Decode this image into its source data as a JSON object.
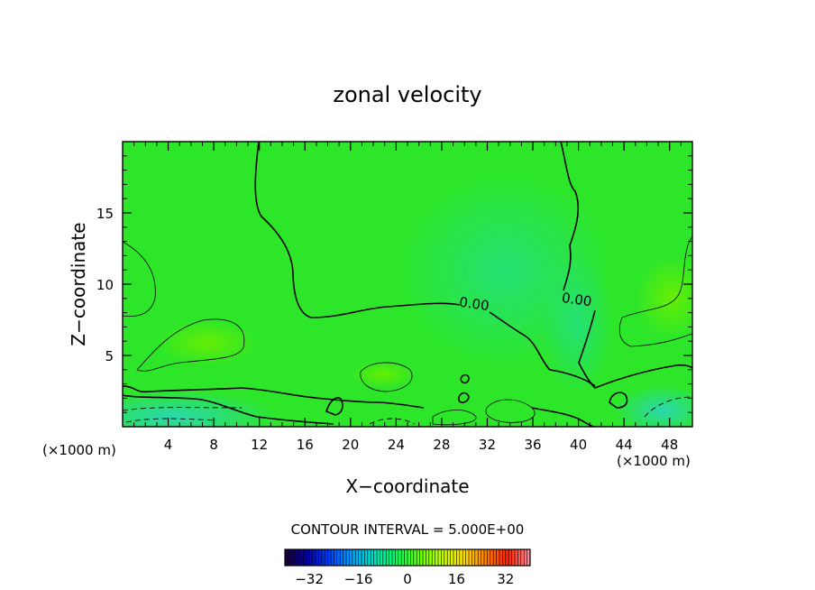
{
  "chart_data": {
    "type": "heatmap",
    "title": "zonal velocity",
    "xlabel": "X−coordinate",
    "ylabel": "Z−coordinate",
    "x_unit_left": "(×1000 m)",
    "x_unit_right": "(×1000 m)",
    "xlim": [
      0,
      50
    ],
    "ylim": [
      0,
      20
    ],
    "x_ticks": [
      4,
      8,
      12,
      16,
      20,
      24,
      28,
      32,
      36,
      40,
      44,
      48
    ],
    "y_ticks": [
      5,
      10,
      15
    ],
    "contour_interval_label": "CONTOUR INTERVAL = 5.000E+00",
    "contour_labels": [
      {
        "text": "0.00",
        "x": 30.8,
        "z": 8.3
      },
      {
        "text": "0.00",
        "x": 39.8,
        "z": 8.6
      }
    ],
    "colorbar": {
      "range": [
        -40,
        40
      ],
      "ticks": [
        -32,
        -16,
        0,
        16,
        32
      ],
      "colors": [
        "#1a0033",
        "#0000aa",
        "#0040ff",
        "#00a0ff",
        "#00e0c0",
        "#00ff60",
        "#60ff00",
        "#c0ff00",
        "#ffe000",
        "#ff8000",
        "#ff2000",
        "#ff90a0"
      ]
    },
    "colors": {
      "field_base": "#2ee629",
      "field_light": "#46f033",
      "field_cool": "#24e46a",
      "field_cyan": "#2adca0",
      "contour": "#000000"
    }
  }
}
